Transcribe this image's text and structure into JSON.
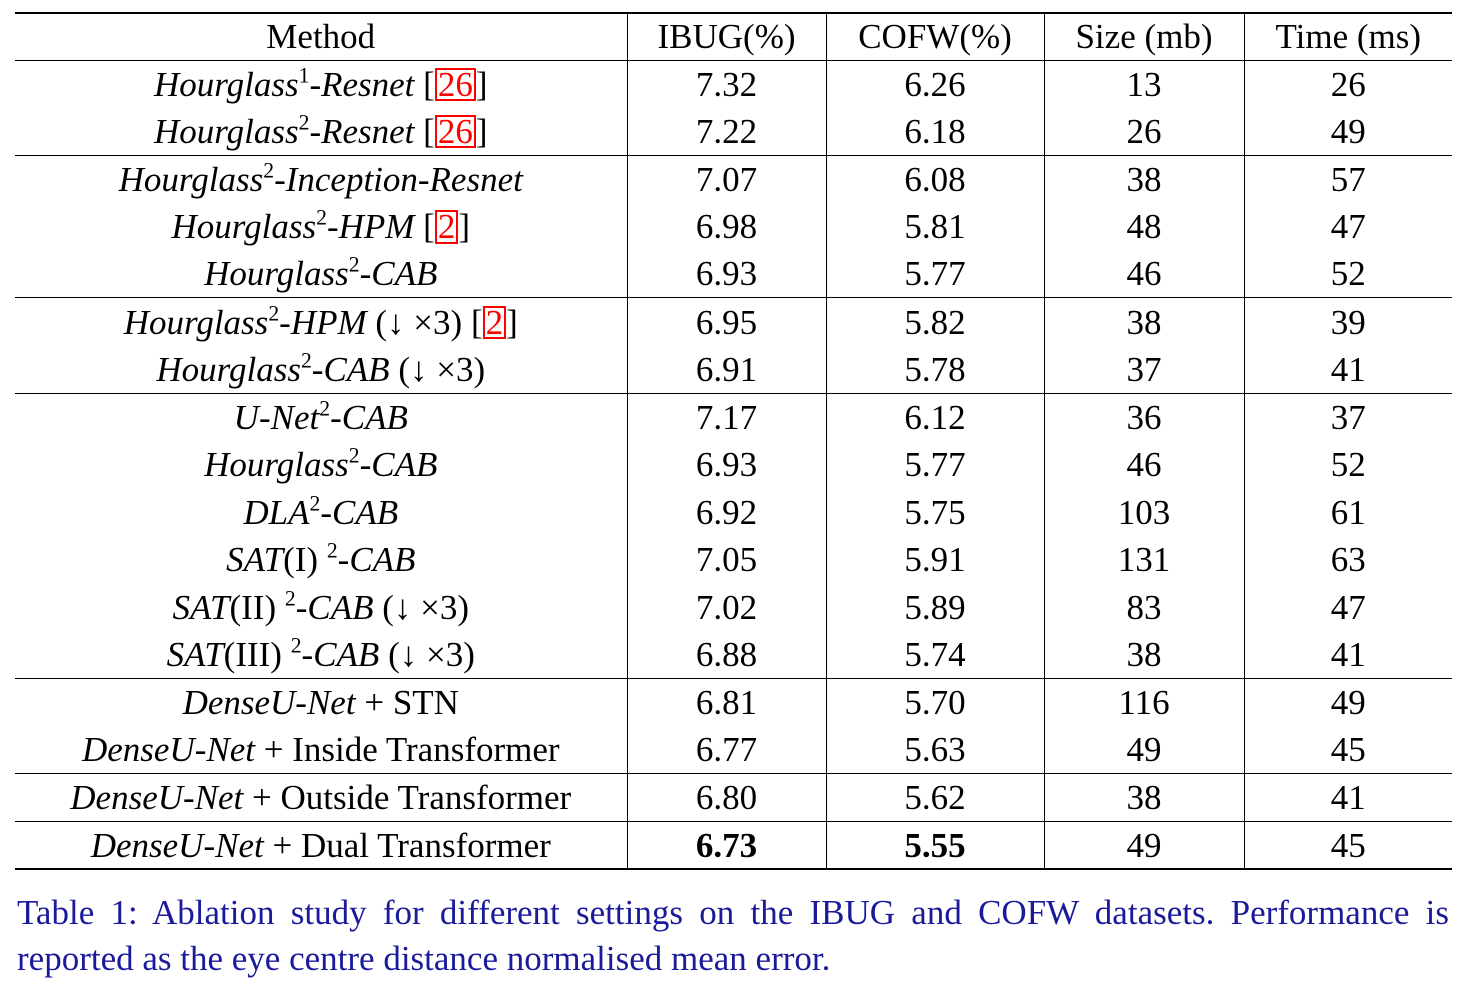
{
  "table": {
    "headers": [
      "Method",
      "IBUG(%)",
      "COFW(%)",
      "Size (mb)",
      "Time (ms)"
    ],
    "rows": [
      {
        "base": "Hourglass",
        "sup": "1",
        "suffix": "-Resnet",
        "extra": "",
        "cite": "26",
        "ibug": "7.32",
        "cofw": "6.26",
        "size": "13",
        "time": "26",
        "group_start": false
      },
      {
        "base": "Hourglass",
        "sup": "2",
        "suffix": "-Resnet",
        "extra": "",
        "cite": "26",
        "ibug": "7.22",
        "cofw": "6.18",
        "size": "26",
        "time": "49",
        "group_start": false
      },
      {
        "base": "Hourglass",
        "sup": "2",
        "suffix": "-Inception-Resnet",
        "extra": "",
        "cite": "",
        "ibug": "7.07",
        "cofw": "6.08",
        "size": "38",
        "time": "57",
        "group_start": true
      },
      {
        "base": "Hourglass",
        "sup": "2",
        "suffix": "-HPM",
        "extra": "",
        "cite": "2",
        "ibug": "6.98",
        "cofw": "5.81",
        "size": "48",
        "time": "47",
        "group_start": false
      },
      {
        "base": "Hourglass",
        "sup": "2",
        "suffix": "-CAB",
        "extra": "",
        "cite": "",
        "ibug": "6.93",
        "cofw": "5.77",
        "size": "46",
        "time": "52",
        "group_start": false
      },
      {
        "base": "Hourglass",
        "sup": "2",
        "suffix": "-HPM",
        "extra": "(↓ ×3)",
        "cite": "2",
        "ibug": "6.95",
        "cofw": "5.82",
        "size": "38",
        "time": "39",
        "group_start": true
      },
      {
        "base": "Hourglass",
        "sup": "2",
        "suffix": "-CAB",
        "extra": "(↓ ×3)",
        "cite": "",
        "ibug": "6.91",
        "cofw": "5.78",
        "size": "37",
        "time": "41",
        "group_start": false
      },
      {
        "base": "U-Net",
        "sup": "2",
        "suffix": "-CAB",
        "extra": "",
        "cite": "",
        "ibug": "7.17",
        "cofw": "6.12",
        "size": "36",
        "time": "37",
        "group_start": true
      },
      {
        "base": "Hourglass",
        "sup": "2",
        "suffix": "-CAB",
        "extra": "",
        "cite": "",
        "ibug": "6.93",
        "cofw": "5.77",
        "size": "46",
        "time": "52",
        "group_start": false
      },
      {
        "base": "DLA",
        "sup": "2",
        "suffix": "-CAB",
        "extra": "",
        "cite": "",
        "ibug": "6.92",
        "cofw": "5.75",
        "size": "103",
        "time": "61",
        "group_start": false
      },
      {
        "base": "SAT",
        "paren": "(I)",
        "sup": "2",
        "suffix": "-CAB",
        "extra": "",
        "cite": "",
        "ibug": "7.05",
        "cofw": "5.91",
        "size": "131",
        "time": "63",
        "group_start": false
      },
      {
        "base": "SAT",
        "paren": "(II)",
        "sup": "2",
        "suffix": "-CAB",
        "extra": "(↓ ×3)",
        "cite": "",
        "ibug": "7.02",
        "cofw": "5.89",
        "size": "83",
        "time": "47",
        "group_start": false
      },
      {
        "base": "SAT",
        "paren": "(III)",
        "sup": "2",
        "suffix": "-CAB",
        "extra": "(↓ ×3)",
        "cite": "",
        "ibug": "6.88",
        "cofw": "5.74",
        "size": "38",
        "time": "41",
        "group_start": false
      },
      {
        "base": "DenseU-Net",
        "sup": "",
        "suffix": "",
        "plain": "+ STN",
        "extra": "",
        "cite": "",
        "ibug": "6.81",
        "cofw": "5.70",
        "size": "116",
        "time": "49",
        "group_start": true
      },
      {
        "base": "DenseU-Net",
        "sup": "",
        "suffix": "",
        "plain": "+ Inside Transformer",
        "extra": "",
        "cite": "",
        "ibug": "6.77",
        "cofw": "5.63",
        "size": "49",
        "time": "45",
        "group_start": false
      },
      {
        "base": "DenseU-Net",
        "sup": "",
        "suffix": "",
        "plain": "+ Outside Transformer",
        "extra": "",
        "cite": "",
        "ibug": "6.80",
        "cofw": "5.62",
        "size": "38",
        "time": "41",
        "group_start": true
      },
      {
        "base": "DenseU-Net",
        "sup": "",
        "suffix": "",
        "plain": "+ Dual Transformer",
        "extra": "",
        "cite": "",
        "ibug": "6.73",
        "cofw": "5.55",
        "size": "49",
        "time": "45",
        "group_start": true,
        "bold_metrics": true
      }
    ]
  },
  "caption": "Table 1: Ablation study for different settings on the IBUG and COFW datasets. Performance is reported as the eye centre distance normalised mean error."
}
